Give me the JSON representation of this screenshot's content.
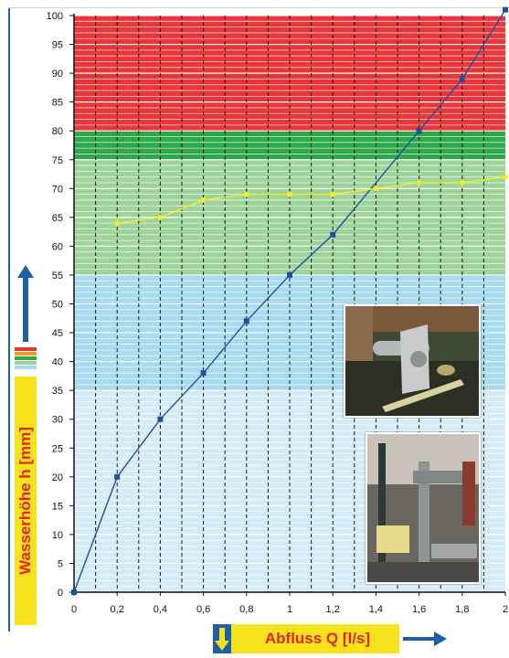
{
  "chart_data": {
    "type": "line",
    "xlabel": "Abfluss Q [l/s]",
    "ylabel": "Wasserhöhe h [mm]",
    "xlim": [
      0,
      2
    ],
    "ylim": [
      0,
      100
    ],
    "x_ticks": [
      0,
      0.2,
      0.4,
      0.6,
      0.8,
      1,
      1.2,
      1.4,
      1.6,
      1.8,
      2
    ],
    "x_tick_labels": [
      "0",
      "0,2",
      "0,4",
      "0,6",
      "0,8",
      "1",
      "1,2",
      "1,4",
      "1,6",
      "1,8",
      "2"
    ],
    "y_ticks": [
      0,
      5,
      10,
      15,
      20,
      25,
      30,
      35,
      40,
      45,
      50,
      55,
      60,
      65,
      70,
      75,
      80,
      85,
      90,
      95,
      100
    ],
    "y_tick_labels": [
      "0",
      "5",
      "10",
      "15",
      "20",
      "25",
      "30",
      "35",
      "40",
      "45",
      "50",
      "55",
      "60",
      "65",
      "70",
      "75",
      "80",
      "85",
      "90",
      "95",
      "100"
    ],
    "grid": true,
    "zones": [
      {
        "from": 0,
        "to": 35,
        "color": "#d3ecf8"
      },
      {
        "from": 35,
        "to": 55,
        "color": "#a9dbf0"
      },
      {
        "from": 55,
        "to": 75,
        "color": "#9ed39a"
      },
      {
        "from": 75,
        "to": 80,
        "color": "#2ea84a"
      },
      {
        "from": 80,
        "to": 100,
        "color": "#e8373a"
      }
    ],
    "series": [
      {
        "color": "#1f4fa0",
        "marker": "square",
        "x": [
          0,
          0.2,
          0.4,
          0.6,
          0.8,
          1,
          1.2,
          1.6,
          1.8,
          2
        ],
        "y": [
          0,
          20,
          30,
          38,
          47,
          55,
          62,
          80,
          89,
          101
        ]
      },
      {
        "color": "#f5ec2a",
        "marker": "circle",
        "x": [
          0.2,
          0.4,
          0.6,
          0.8,
          1,
          1.2,
          1.4,
          1.6,
          1.8,
          2
        ],
        "y": [
          64,
          65,
          68,
          69,
          69,
          69,
          70,
          71,
          71,
          72
        ]
      }
    ]
  },
  "photos": {
    "top": "pipe-outlet-photo",
    "bottom": "test-rig-photo"
  },
  "colors": {
    "accent_red": "#e2261f",
    "accent_yellow": "#f6e21d",
    "accent_blue": "#1f5fa8"
  }
}
